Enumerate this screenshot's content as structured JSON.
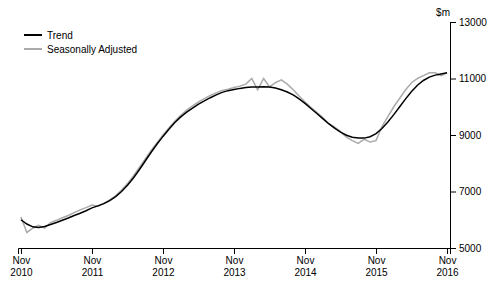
{
  "chart_data": {
    "type": "line",
    "y_label": "$m",
    "categories": [
      "Nov\n2010",
      null,
      null,
      null,
      null,
      null,
      null,
      null,
      null,
      null,
      null,
      null,
      "Nov\n2011",
      null,
      null,
      null,
      null,
      null,
      null,
      null,
      null,
      null,
      null,
      null,
      "Nov\n2012",
      null,
      null,
      null,
      null,
      null,
      null,
      null,
      null,
      null,
      null,
      null,
      "Nov\n2013",
      null,
      null,
      null,
      null,
      null,
      null,
      null,
      null,
      null,
      null,
      null,
      "Nov\n2014",
      null,
      null,
      null,
      null,
      null,
      null,
      null,
      null,
      null,
      null,
      null,
      "Nov\n2015",
      null,
      null,
      null,
      null,
      null,
      null,
      null,
      null,
      null,
      null,
      null,
      "Nov\n2016"
    ],
    "series": [
      {
        "name": "Trend",
        "color": "#000000",
        "values": [
          6000,
          5850,
          5750,
          5730,
          5760,
          5830,
          5900,
          5980,
          6060,
          6150,
          6230,
          6320,
          6420,
          6490,
          6570,
          6680,
          6820,
          7000,
          7220,
          7480,
          7770,
          8080,
          8390,
          8680,
          8950,
          9200,
          9440,
          9640,
          9810,
          9950,
          10090,
          10210,
          10320,
          10420,
          10510,
          10570,
          10610,
          10650,
          10680,
          10700,
          10700,
          10710,
          10700,
          10660,
          10600,
          10520,
          10420,
          10280,
          10120,
          9940,
          9760,
          9580,
          9400,
          9240,
          9100,
          8990,
          8920,
          8890,
          8890,
          8940,
          9050,
          9230,
          9460,
          9720,
          10000,
          10280,
          10540,
          10760,
          10930,
          11050,
          11120,
          11160,
          11200
        ]
      },
      {
        "name": "Seasonally Adjusted",
        "color": "#aaaaaa",
        "values": [
          6100,
          5550,
          5700,
          5800,
          5700,
          5900,
          5980,
          6070,
          6150,
          6250,
          6350,
          6430,
          6520,
          6480,
          6580,
          6700,
          6850,
          7050,
          7280,
          7550,
          7850,
          8150,
          8450,
          8730,
          9000,
          9250,
          9490,
          9700,
          9880,
          10030,
          10170,
          10290,
          10400,
          10490,
          10580,
          10620,
          10680,
          10730,
          10800,
          11000,
          10600,
          11000,
          10700,
          10850,
          10950,
          10800,
          10600,
          10380,
          10170,
          9980,
          9800,
          9620,
          9400,
          9280,
          9120,
          8920,
          8800,
          8700,
          8850,
          8750,
          8800,
          9300,
          9650,
          10000,
          10300,
          10600,
          10850,
          11000,
          11100,
          11200,
          11200,
          11100,
          11200
        ]
      }
    ],
    "ylim": [
      5000,
      13000
    ],
    "yticks": [
      5000,
      7000,
      9000,
      11000,
      13000
    ],
    "grid": false,
    "legend": "upper left"
  }
}
